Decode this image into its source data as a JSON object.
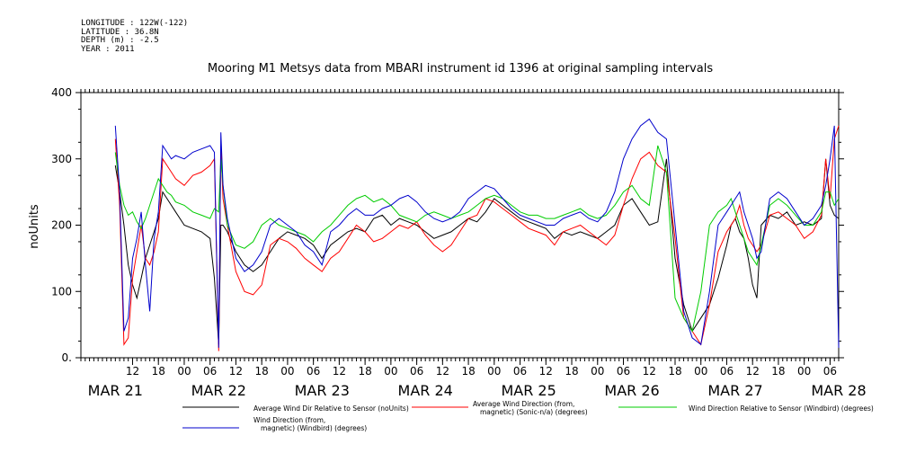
{
  "meta": {
    "longitude": "LONGITUDE : 122W(-122)",
    "latitude": "LATITUDE : 36.8N",
    "depth": "DEPTH (m) : -2.5",
    "year": "YEAR : 2011"
  },
  "chart_data": {
    "type": "line",
    "title": "Mooring M1 Metsys data from MBARI instrument id 1396 at original sampling intervals",
    "ylabel": "noUnits",
    "xlabel": "",
    "ylim": [
      0,
      400
    ],
    "yticks": [
      0,
      100,
      200,
      300,
      400
    ],
    "xlim_hours": [
      0,
      176
    ],
    "hour_tick_labels": [
      "12",
      "18",
      "00",
      "06",
      "12",
      "18",
      "00",
      "06",
      "12",
      "18",
      "00",
      "06",
      "12",
      "18",
      "00",
      "06",
      "12",
      "18",
      "00",
      "06",
      "12",
      "18",
      "00",
      "06",
      "12",
      "18",
      "00",
      "06"
    ],
    "day_labels": [
      "MAR 21",
      "MAR 22",
      "MAR 23",
      "MAR 24",
      "MAR 25",
      "MAR 26",
      "MAR 27",
      "MAR 28"
    ],
    "x_unit": "hours since MAR 21 00:00",
    "x_start_hour": 8,
    "grid": false,
    "legend_position": "bottom",
    "series": [
      {
        "name": "Average Wind Dir Relative to Sensor (noUnits)",
        "color": "#000000",
        "x": [
          8,
          9,
          10,
          11,
          12,
          13,
          14,
          15,
          16,
          17,
          18,
          19,
          20,
          21,
          22,
          24,
          26,
          28,
          30,
          31,
          32,
          32.5,
          33,
          34,
          36,
          38,
          40,
          42,
          44,
          46,
          48,
          50,
          52,
          54,
          56,
          58,
          60,
          62,
          64,
          66,
          68,
          70,
          72,
          74,
          76,
          78,
          80,
          82,
          84,
          86,
          88,
          90,
          92,
          94,
          96,
          98,
          100,
          102,
          104,
          106,
          108,
          110,
          112,
          114,
          116,
          118,
          120,
          122,
          124,
          126,
          128,
          130,
          132,
          134,
          136,
          138,
          140,
          142,
          144,
          146,
          148,
          150,
          151,
          152,
          153,
          154,
          155,
          156,
          157,
          158,
          160,
          162,
          164,
          166,
          168,
          170,
          172,
          173,
          174,
          175,
          176
        ],
        "y": [
          290,
          250,
          200,
          140,
          110,
          90,
          120,
          150,
          170,
          190,
          210,
          250,
          240,
          230,
          220,
          200,
          195,
          190,
          180,
          120,
          20,
          200,
          200,
          190,
          160,
          140,
          130,
          140,
          160,
          180,
          190,
          185,
          180,
          170,
          150,
          170,
          180,
          190,
          195,
          190,
          210,
          215,
          200,
          210,
          205,
          200,
          190,
          180,
          185,
          190,
          200,
          210,
          205,
          220,
          240,
          230,
          220,
          210,
          205,
          200,
          195,
          180,
          190,
          185,
          190,
          185,
          180,
          190,
          200,
          230,
          240,
          220,
          200,
          205,
          300,
          150,
          80,
          40,
          60,
          80,
          120,
          170,
          200,
          210,
          190,
          180,
          150,
          110,
          90,
          200,
          215,
          210,
          220,
          200,
          205,
          200,
          210,
          300,
          230,
          215,
          210
        ]
      },
      {
        "name": "Average Wind Direction (from, magnetic) (Sonic-n/a) (degrees)",
        "color": "#ff0000",
        "x": [
          8,
          9,
          10,
          11,
          12,
          13,
          14,
          15,
          16,
          17,
          18,
          19,
          20,
          21,
          22,
          24,
          26,
          28,
          30,
          31,
          32,
          32.5,
          33,
          34,
          36,
          38,
          40,
          42,
          44,
          46,
          48,
          50,
          52,
          54,
          56,
          58,
          60,
          62,
          64,
          66,
          68,
          70,
          72,
          74,
          76,
          78,
          80,
          82,
          84,
          86,
          88,
          90,
          92,
          94,
          96,
          98,
          100,
          102,
          104,
          106,
          108,
          110,
          112,
          114,
          116,
          118,
          120,
          122,
          124,
          126,
          128,
          130,
          132,
          134,
          136,
          138,
          140,
          142,
          144,
          146,
          148,
          150,
          151,
          152,
          153,
          154,
          155,
          156,
          157,
          158,
          160,
          162,
          164,
          166,
          168,
          170,
          172,
          173,
          174,
          175,
          176
        ],
        "y": [
          330,
          230,
          20,
          30,
          120,
          160,
          200,
          150,
          140,
          160,
          190,
          300,
          290,
          280,
          270,
          260,
          275,
          280,
          290,
          300,
          10,
          320,
          240,
          200,
          130,
          100,
          95,
          110,
          170,
          180,
          175,
          165,
          150,
          140,
          130,
          150,
          160,
          180,
          200,
          190,
          175,
          180,
          190,
          200,
          195,
          205,
          185,
          170,
          160,
          170,
          190,
          210,
          215,
          240,
          235,
          225,
          215,
          205,
          195,
          190,
          185,
          170,
          190,
          195,
          200,
          190,
          180,
          170,
          185,
          230,
          270,
          300,
          310,
          290,
          280,
          180,
          60,
          40,
          20,
          80,
          160,
          190,
          200,
          210,
          230,
          200,
          180,
          170,
          160,
          170,
          215,
          220,
          210,
          200,
          180,
          190,
          215,
          300,
          240,
          330,
          350
        ]
      },
      {
        "name": "Wind Direction Relative to Sensor (Windbird) (degrees)",
        "color": "#00cc00",
        "x": [
          8,
          9,
          10,
          11,
          12,
          13,
          14,
          15,
          16,
          17,
          18,
          19,
          20,
          21,
          22,
          24,
          26,
          28,
          30,
          31,
          32,
          32.5,
          33,
          34,
          36,
          38,
          40,
          42,
          44,
          46,
          48,
          50,
          52,
          54,
          56,
          58,
          60,
          62,
          64,
          66,
          68,
          70,
          72,
          74,
          76,
          78,
          80,
          82,
          84,
          86,
          88,
          90,
          92,
          94,
          96,
          98,
          100,
          102,
          104,
          106,
          108,
          110,
          112,
          114,
          116,
          118,
          120,
          122,
          124,
          126,
          128,
          130,
          132,
          134,
          136,
          138,
          140,
          142,
          144,
          146,
          148,
          150,
          151,
          152,
          153,
          154,
          155,
          156,
          157,
          158,
          160,
          162,
          164,
          166,
          168,
          170,
          172,
          173,
          174,
          175,
          176
        ],
        "y": [
          310,
          260,
          230,
          215,
          220,
          205,
          195,
          210,
          230,
          250,
          270,
          260,
          250,
          245,
          235,
          230,
          220,
          215,
          210,
          225,
          220,
          300,
          260,
          200,
          170,
          165,
          175,
          200,
          210,
          200,
          195,
          190,
          185,
          175,
          190,
          200,
          215,
          230,
          240,
          245,
          235,
          240,
          230,
          215,
          210,
          205,
          215,
          220,
          215,
          210,
          215,
          220,
          230,
          240,
          245,
          240,
          230,
          220,
          215,
          215,
          210,
          210,
          215,
          220,
          225,
          215,
          210,
          215,
          230,
          250,
          260,
          240,
          230,
          320,
          280,
          90,
          60,
          40,
          100,
          200,
          220,
          230,
          240,
          220,
          200,
          180,
          160,
          150,
          140,
          170,
          230,
          240,
          230,
          215,
          200,
          200,
          220,
          250,
          250,
          230,
          240
        ]
      },
      {
        "name": "Wind Direction (from, magnetic) (Windbird) (degrees)",
        "color": "#0000cc",
        "x": [
          8,
          9,
          10,
          11,
          12,
          13,
          14,
          15,
          16,
          17,
          18,
          19,
          20,
          21,
          22,
          24,
          26,
          28,
          30,
          31,
          32,
          32.5,
          33,
          34,
          36,
          38,
          40,
          42,
          44,
          46,
          48,
          50,
          52,
          54,
          56,
          58,
          60,
          62,
          64,
          66,
          68,
          70,
          72,
          74,
          76,
          78,
          80,
          82,
          84,
          86,
          88,
          90,
          92,
          94,
          96,
          98,
          100,
          102,
          104,
          106,
          108,
          110,
          112,
          114,
          116,
          118,
          120,
          122,
          124,
          126,
          128,
          130,
          132,
          134,
          136,
          138,
          140,
          142,
          144,
          146,
          148,
          150,
          151,
          152,
          153,
          154,
          155,
          156,
          157,
          158,
          160,
          162,
          164,
          166,
          168,
          170,
          172,
          173,
          174,
          175,
          176
        ],
        "y": [
          350,
          250,
          40,
          60,
          150,
          180,
          220,
          140,
          70,
          180,
          220,
          320,
          310,
          300,
          305,
          300,
          310,
          315,
          320,
          310,
          15,
          340,
          260,
          210,
          150,
          130,
          140,
          160,
          200,
          210,
          200,
          190,
          170,
          160,
          140,
          190,
          200,
          215,
          225,
          215,
          215,
          225,
          230,
          240,
          245,
          235,
          220,
          210,
          205,
          210,
          220,
          240,
          250,
          260,
          255,
          240,
          225,
          215,
          210,
          205,
          200,
          200,
          210,
          215,
          220,
          210,
          205,
          220,
          250,
          300,
          330,
          350,
          360,
          340,
          330,
          200,
          70,
          30,
          20,
          100,
          200,
          220,
          230,
          240,
          250,
          220,
          200,
          180,
          150,
          160,
          240,
          250,
          240,
          220,
          200,
          210,
          230,
          260,
          300,
          350,
          15
        ]
      }
    ]
  },
  "legend": [
    {
      "label_lines": [
        "Average Wind Dir Relative to Sensor (noUnits)"
      ],
      "color": "#000000"
    },
    {
      "label_lines": [
        "Average Wind Direction (from,",
        "magnetic) (Sonic-n/a) (degrees)"
      ],
      "color": "#ff0000"
    },
    {
      "label_lines": [
        "Wind Direction Relative to Sensor (Windbird) (degrees)"
      ],
      "color": "#00cc00"
    },
    {
      "label_lines": [
        "Wind Direction (from,",
        "magnetic) (Windbird) (degrees)"
      ],
      "color": "#0000cc"
    }
  ]
}
